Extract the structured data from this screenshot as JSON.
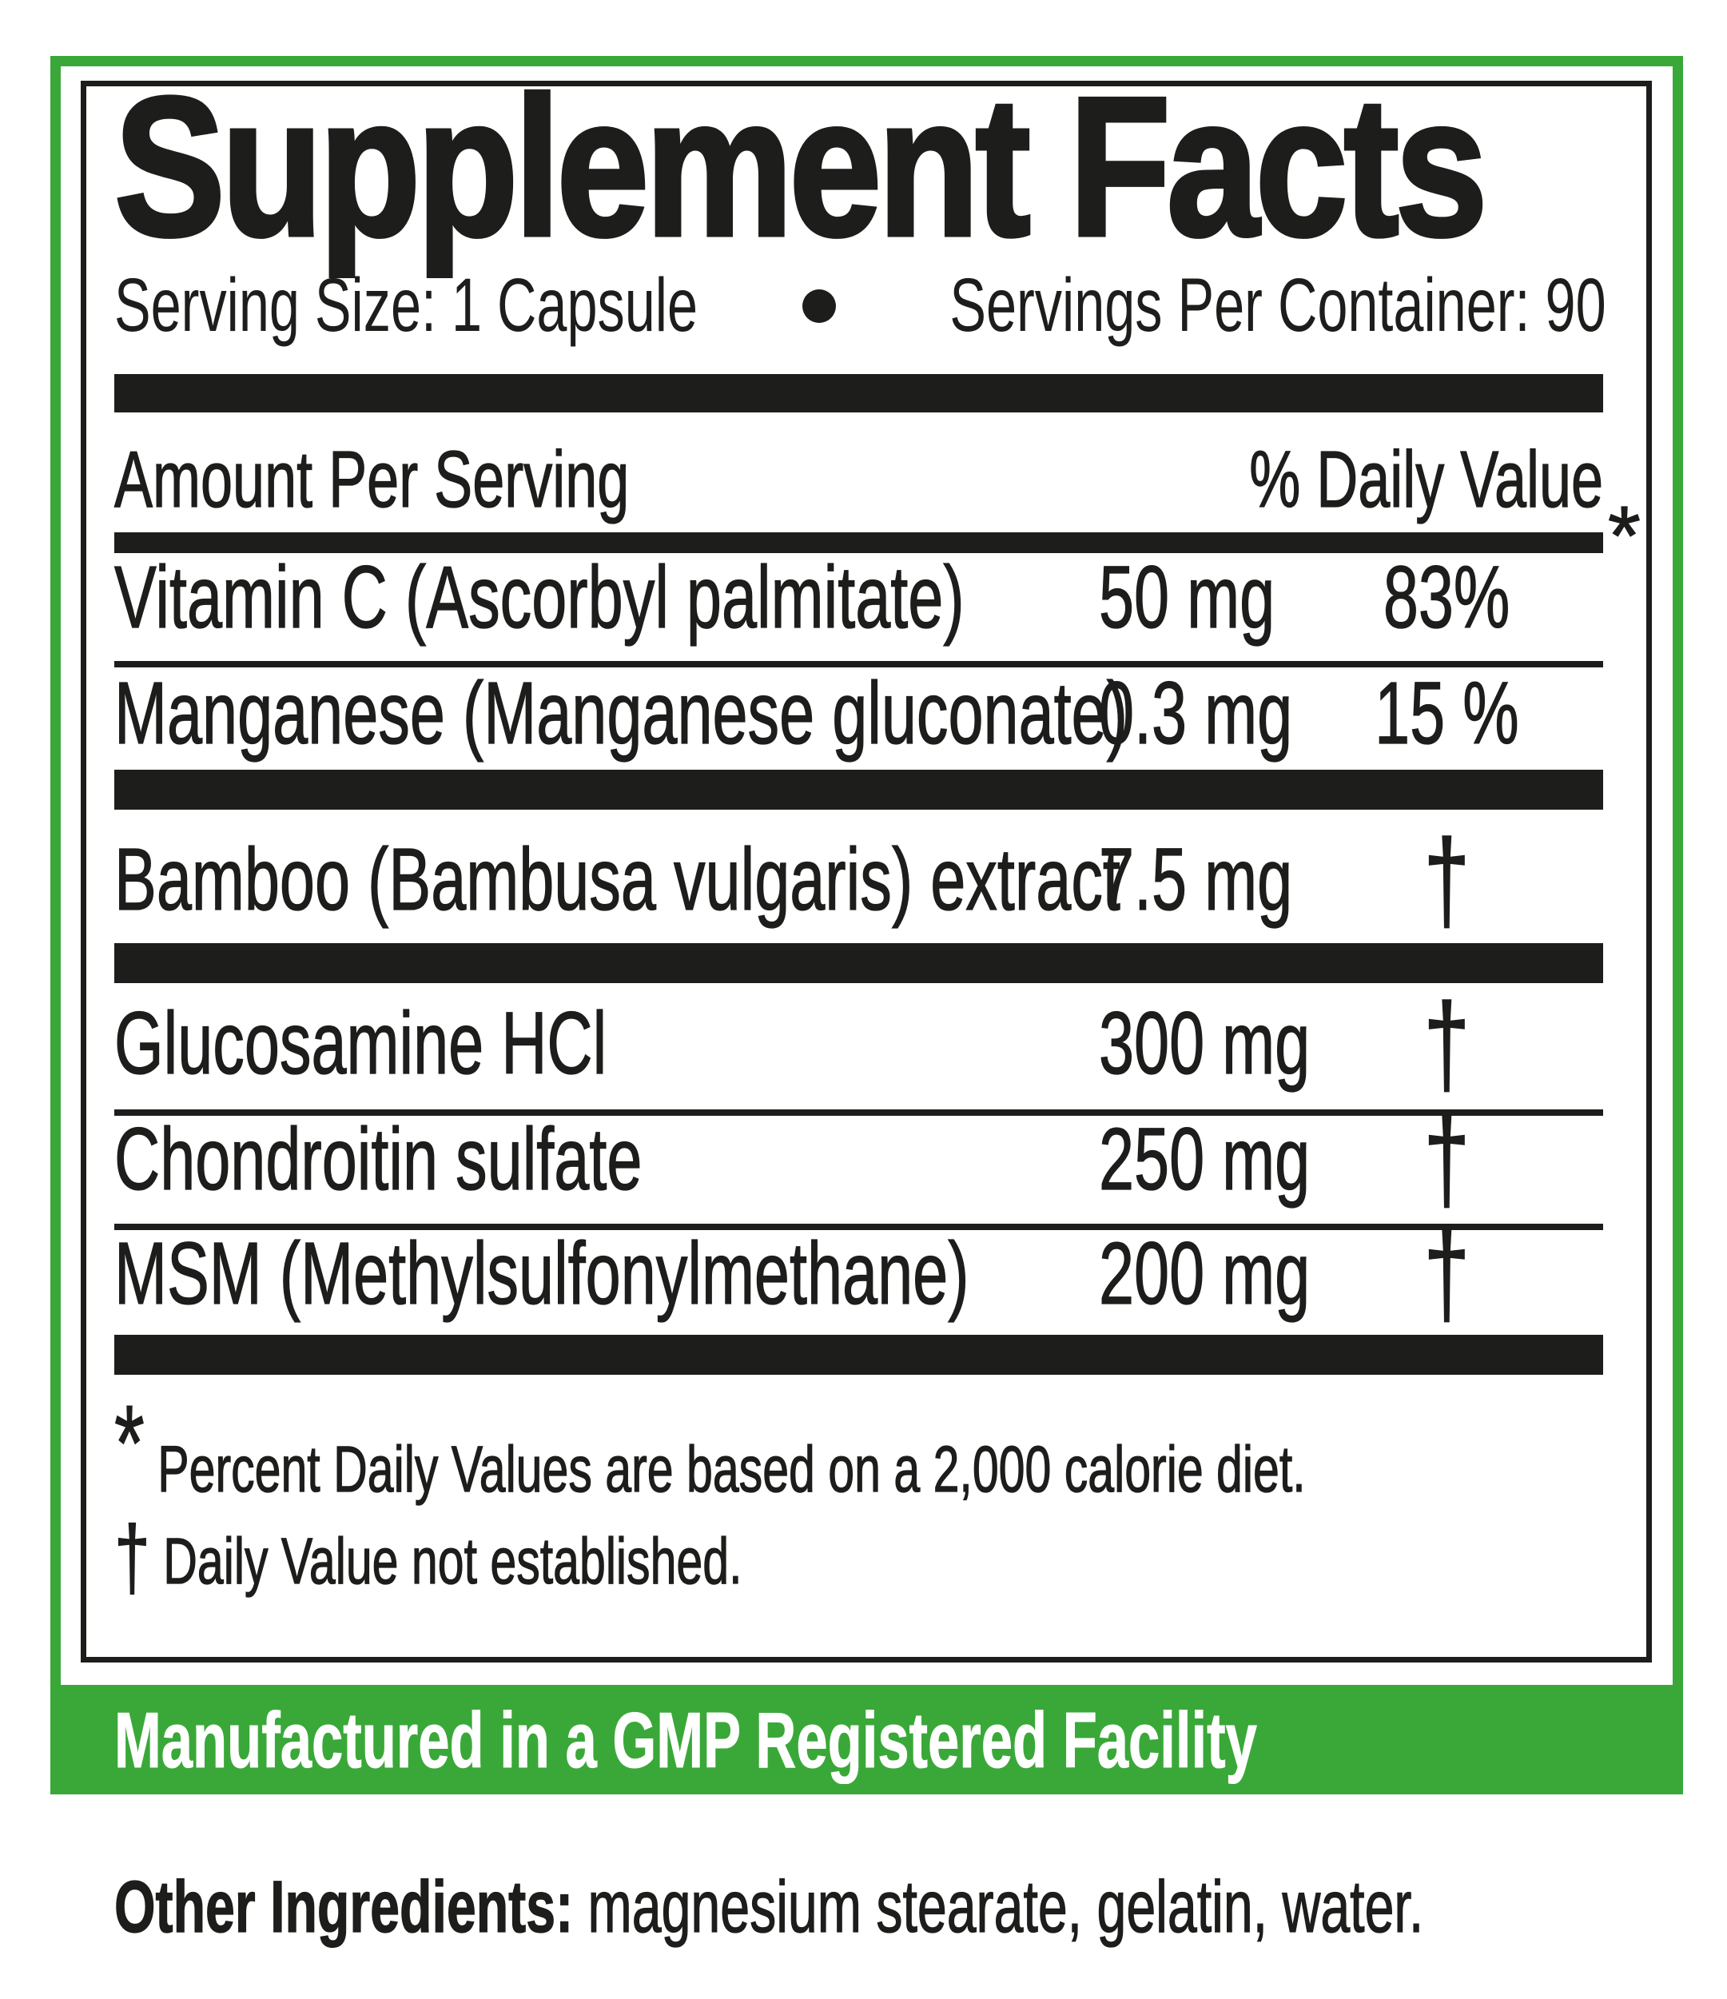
{
  "colors": {
    "green": "#3aa838",
    "ink": "#1d1d1b"
  },
  "title": "Supplement Facts",
  "serving_line": {
    "serving_size": "Serving Size: 1 Capsule",
    "bullet": "•",
    "servings_per_container": "Servings Per Container: 90"
  },
  "table": {
    "header": {
      "amount_col": "Amount Per Serving",
      "daily_value_col": "% Daily Value",
      "daily_value_asterisk": "*"
    },
    "rows": [
      {
        "name": "Vitamin C (Ascorbyl palmitate)",
        "amount": "50 mg",
        "daily_value": "83%"
      },
      {
        "name": "Manganese (Manganese gluconate)",
        "amount": "0.3 mg",
        "daily_value": "15 %"
      },
      {
        "name": "Bamboo (Bambusa vulgaris) extract",
        "amount": "7.5 mg",
        "daily_value": "†"
      },
      {
        "name": "Glucosamine HCl",
        "amount": "300 mg",
        "daily_value": "†"
      },
      {
        "name": "Chondroitin sulfate",
        "amount": "250 mg",
        "daily_value": "†"
      },
      {
        "name": "MSM (Methylsulfonylmethane)",
        "amount": "200 mg",
        "daily_value": "†"
      }
    ]
  },
  "footnotes": {
    "percent": {
      "symbol": "*",
      "text": " Percent Daily Values are based on a 2,000 calorie diet."
    },
    "dagger": {
      "symbol": "†",
      "text": " Daily Value not established."
    }
  },
  "banner": {
    "text": "Manufactured in a GMP Registered Facility"
  },
  "other_ingredients": {
    "label": "Other Ingredients:",
    "text": " magnesium stearate, gelatin, water."
  }
}
